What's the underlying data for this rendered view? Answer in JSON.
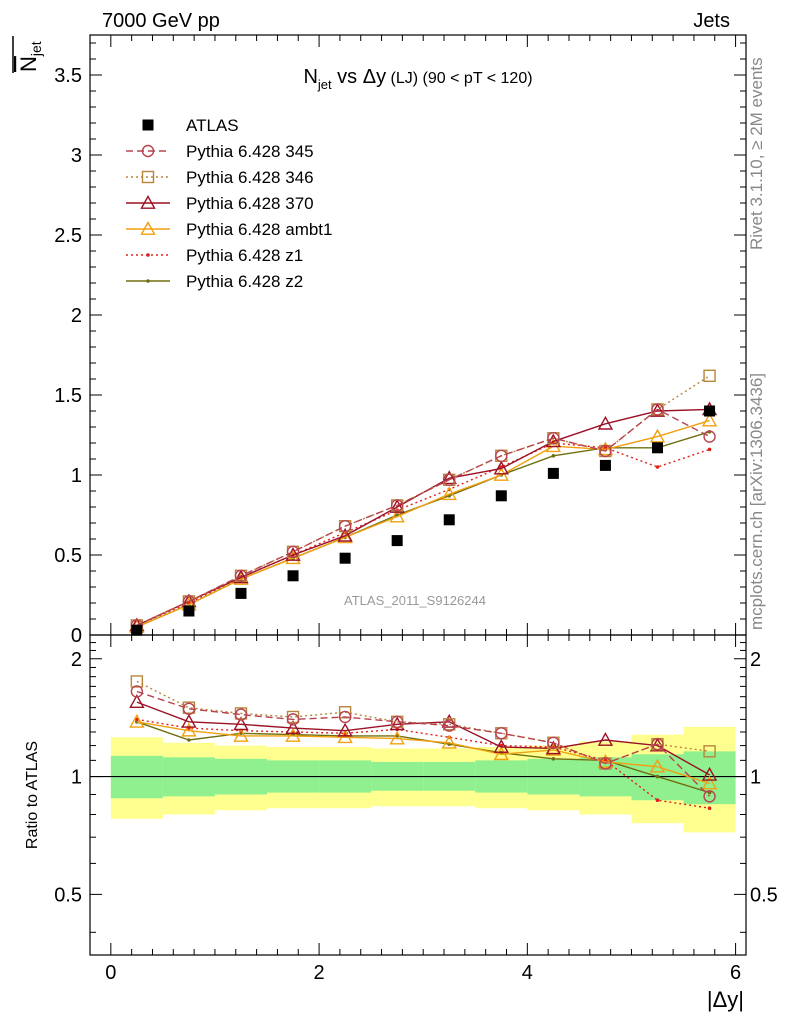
{
  "header": {
    "left": "7000 GeV pp",
    "right": "Jets"
  },
  "side": {
    "rivet": "Rivet 3.1.10, ≥ 2M events",
    "mcplots": "mcplots.cern.ch [arXiv:1306.3436]"
  },
  "watermark": "ATLAS_2011_S9126244",
  "colors": {
    "atlas": "#000000",
    "p345": "#b8434e",
    "p346": "#b8853c",
    "p370": "#9b1126",
    "ambt1": "#f0a010",
    "z1": "#e0201c",
    "z2": "#707010",
    "band_inner": "#90f090",
    "band_outer": "#ffff90"
  },
  "chart_data": [
    {
      "id": "main",
      "type": "line",
      "title_parts": [
        "N",
        "jet",
        " vs Δy",
        " (LJ) (90 < pT < 120)"
      ],
      "ylabel_parts": [
        "N",
        "jet"
      ],
      "xlim": [
        -0.2,
        6.1
      ],
      "ylim": [
        0,
        3.75
      ],
      "yticks": [
        0,
        0.5,
        1,
        1.5,
        2,
        2.5,
        3,
        3.5
      ],
      "ytick_labels": [
        "0",
        "0.5",
        "1",
        "1.5",
        "2",
        "2.5",
        "3",
        "3.5"
      ],
      "x": [
        0.25,
        0.75,
        1.25,
        1.75,
        2.25,
        2.75,
        3.25,
        3.75,
        4.25,
        4.75,
        5.25,
        5.75
      ],
      "series": [
        {
          "name": "ATLAS",
          "key": "atlas",
          "marker": "square",
          "line": "none",
          "values": [
            0.03,
            0.15,
            0.26,
            0.37,
            0.48,
            0.59,
            0.72,
            0.87,
            1.01,
            1.06,
            1.17,
            1.4
          ]
        },
        {
          "name": "Pythia 6.428 345",
          "key": "p345",
          "marker": "circle",
          "line": "dashed",
          "values": [
            0.06,
            0.21,
            0.37,
            0.52,
            0.68,
            0.81,
            0.97,
            1.12,
            1.23,
            1.15,
            1.41,
            1.24
          ]
        },
        {
          "name": "Pythia 6.428 346",
          "key": "p346",
          "marker": "square-open",
          "line": "dotted",
          "values": [
            0.06,
            0.21,
            0.37,
            0.52,
            0.68,
            0.81,
            0.97,
            1.12,
            1.23,
            1.15,
            1.41,
            1.62
          ]
        },
        {
          "name": "Pythia 6.428 370",
          "key": "p370",
          "marker": "triangle",
          "line": "solid",
          "values": [
            0.06,
            0.21,
            0.36,
            0.5,
            0.62,
            0.8,
            0.98,
            1.04,
            1.21,
            1.32,
            1.4,
            1.41
          ]
        },
        {
          "name": "Pythia 6.428 ambt1",
          "key": "ambt1",
          "marker": "triangle",
          "line": "solid",
          "values": [
            0.05,
            0.19,
            0.35,
            0.48,
            0.61,
            0.74,
            0.88,
            1.0,
            1.18,
            1.16,
            1.24,
            1.34
          ]
        },
        {
          "name": "Pythia 6.428 z1",
          "key": "z1",
          "marker": "dot",
          "line": "dotted",
          "values": [
            0.05,
            0.2,
            0.36,
            0.5,
            0.64,
            0.78,
            0.91,
            1.05,
            1.2,
            1.17,
            1.05,
            1.16
          ]
        },
        {
          "name": "Pythia 6.428 z2",
          "key": "z2",
          "marker": "dot",
          "line": "solid",
          "values": [
            0.05,
            0.19,
            0.35,
            0.48,
            0.61,
            0.75,
            0.87,
            1.0,
            1.12,
            1.17,
            1.17,
            1.27
          ]
        }
      ],
      "legend": "top-left"
    },
    {
      "id": "ratio",
      "type": "line",
      "ylabel": "Ratio to ATLAS",
      "xlabel": "|Δy|",
      "xlim": [
        -0.2,
        6.1
      ],
      "ylim": [
        0.35,
        2.3
      ],
      "log_scale_y": true,
      "xticks": [
        0,
        2,
        4,
        6
      ],
      "xtick_labels": [
        "0",
        "2",
        "4",
        "6"
      ],
      "yticks": [
        0.5,
        1,
        2
      ],
      "ytick_labels": [
        "0.5",
        "1",
        "2"
      ],
      "bands": {
        "edges": [
          0,
          0.5,
          1,
          1.5,
          2,
          2.5,
          3,
          3.5,
          4,
          4.5,
          5,
          5.5,
          6
        ],
        "inner": [
          [
            0.88,
            1.13
          ],
          [
            0.89,
            1.12
          ],
          [
            0.9,
            1.11
          ],
          [
            0.91,
            1.1
          ],
          [
            0.91,
            1.1
          ],
          [
            0.92,
            1.09
          ],
          [
            0.92,
            1.09
          ],
          [
            0.91,
            1.1
          ],
          [
            0.9,
            1.11
          ],
          [
            0.89,
            1.12
          ],
          [
            0.87,
            1.14
          ],
          [
            0.85,
            1.16
          ]
        ],
        "outer": [
          [
            0.78,
            1.26
          ],
          [
            0.8,
            1.22
          ],
          [
            0.82,
            1.2
          ],
          [
            0.83,
            1.19
          ],
          [
            0.83,
            1.19
          ],
          [
            0.84,
            1.18
          ],
          [
            0.84,
            1.18
          ],
          [
            0.83,
            1.19
          ],
          [
            0.82,
            1.2
          ],
          [
            0.8,
            1.23
          ],
          [
            0.76,
            1.28
          ],
          [
            0.72,
            1.34
          ]
        ]
      },
      "x": [
        0.25,
        0.75,
        1.25,
        1.75,
        2.25,
        2.75,
        3.25,
        3.75,
        4.25,
        4.75,
        5.25,
        5.75
      ],
      "series": [
        {
          "name": "Pythia 6.428 345",
          "key": "p345",
          "marker": "circle",
          "line": "dashed",
          "values": [
            1.65,
            1.49,
            1.44,
            1.4,
            1.42,
            1.38,
            1.35,
            1.29,
            1.22,
            1.08,
            1.21,
            0.89
          ]
        },
        {
          "name": "Pythia 6.428 346",
          "key": "p346",
          "marker": "square-open",
          "line": "dotted",
          "values": [
            1.75,
            1.5,
            1.45,
            1.42,
            1.46,
            1.38,
            1.36,
            1.29,
            1.22,
            1.08,
            1.21,
            1.16
          ]
        },
        {
          "name": "Pythia 6.428 370",
          "key": "p370",
          "marker": "triangle",
          "line": "solid",
          "values": [
            1.55,
            1.38,
            1.36,
            1.33,
            1.31,
            1.36,
            1.38,
            1.19,
            1.18,
            1.24,
            1.2,
            1.01
          ]
        },
        {
          "name": "Pythia 6.428 ambt1",
          "key": "ambt1",
          "marker": "triangle",
          "line": "solid",
          "values": [
            1.38,
            1.31,
            1.27,
            1.27,
            1.26,
            1.25,
            1.22,
            1.14,
            1.17,
            1.09,
            1.06,
            0.96
          ]
        },
        {
          "name": "Pythia 6.428 z1",
          "key": "z1",
          "marker": "dot",
          "line": "dotted",
          "values": [
            1.4,
            1.33,
            1.31,
            1.3,
            1.29,
            1.32,
            1.26,
            1.2,
            1.19,
            1.1,
            0.87,
            0.83
          ]
        },
        {
          "name": "Pythia 6.428 z2",
          "key": "z2",
          "marker": "dot",
          "line": "solid",
          "values": [
            1.38,
            1.24,
            1.29,
            1.28,
            1.27,
            1.27,
            1.21,
            1.15,
            1.11,
            1.1,
            1.0,
            0.91
          ]
        }
      ]
    }
  ]
}
